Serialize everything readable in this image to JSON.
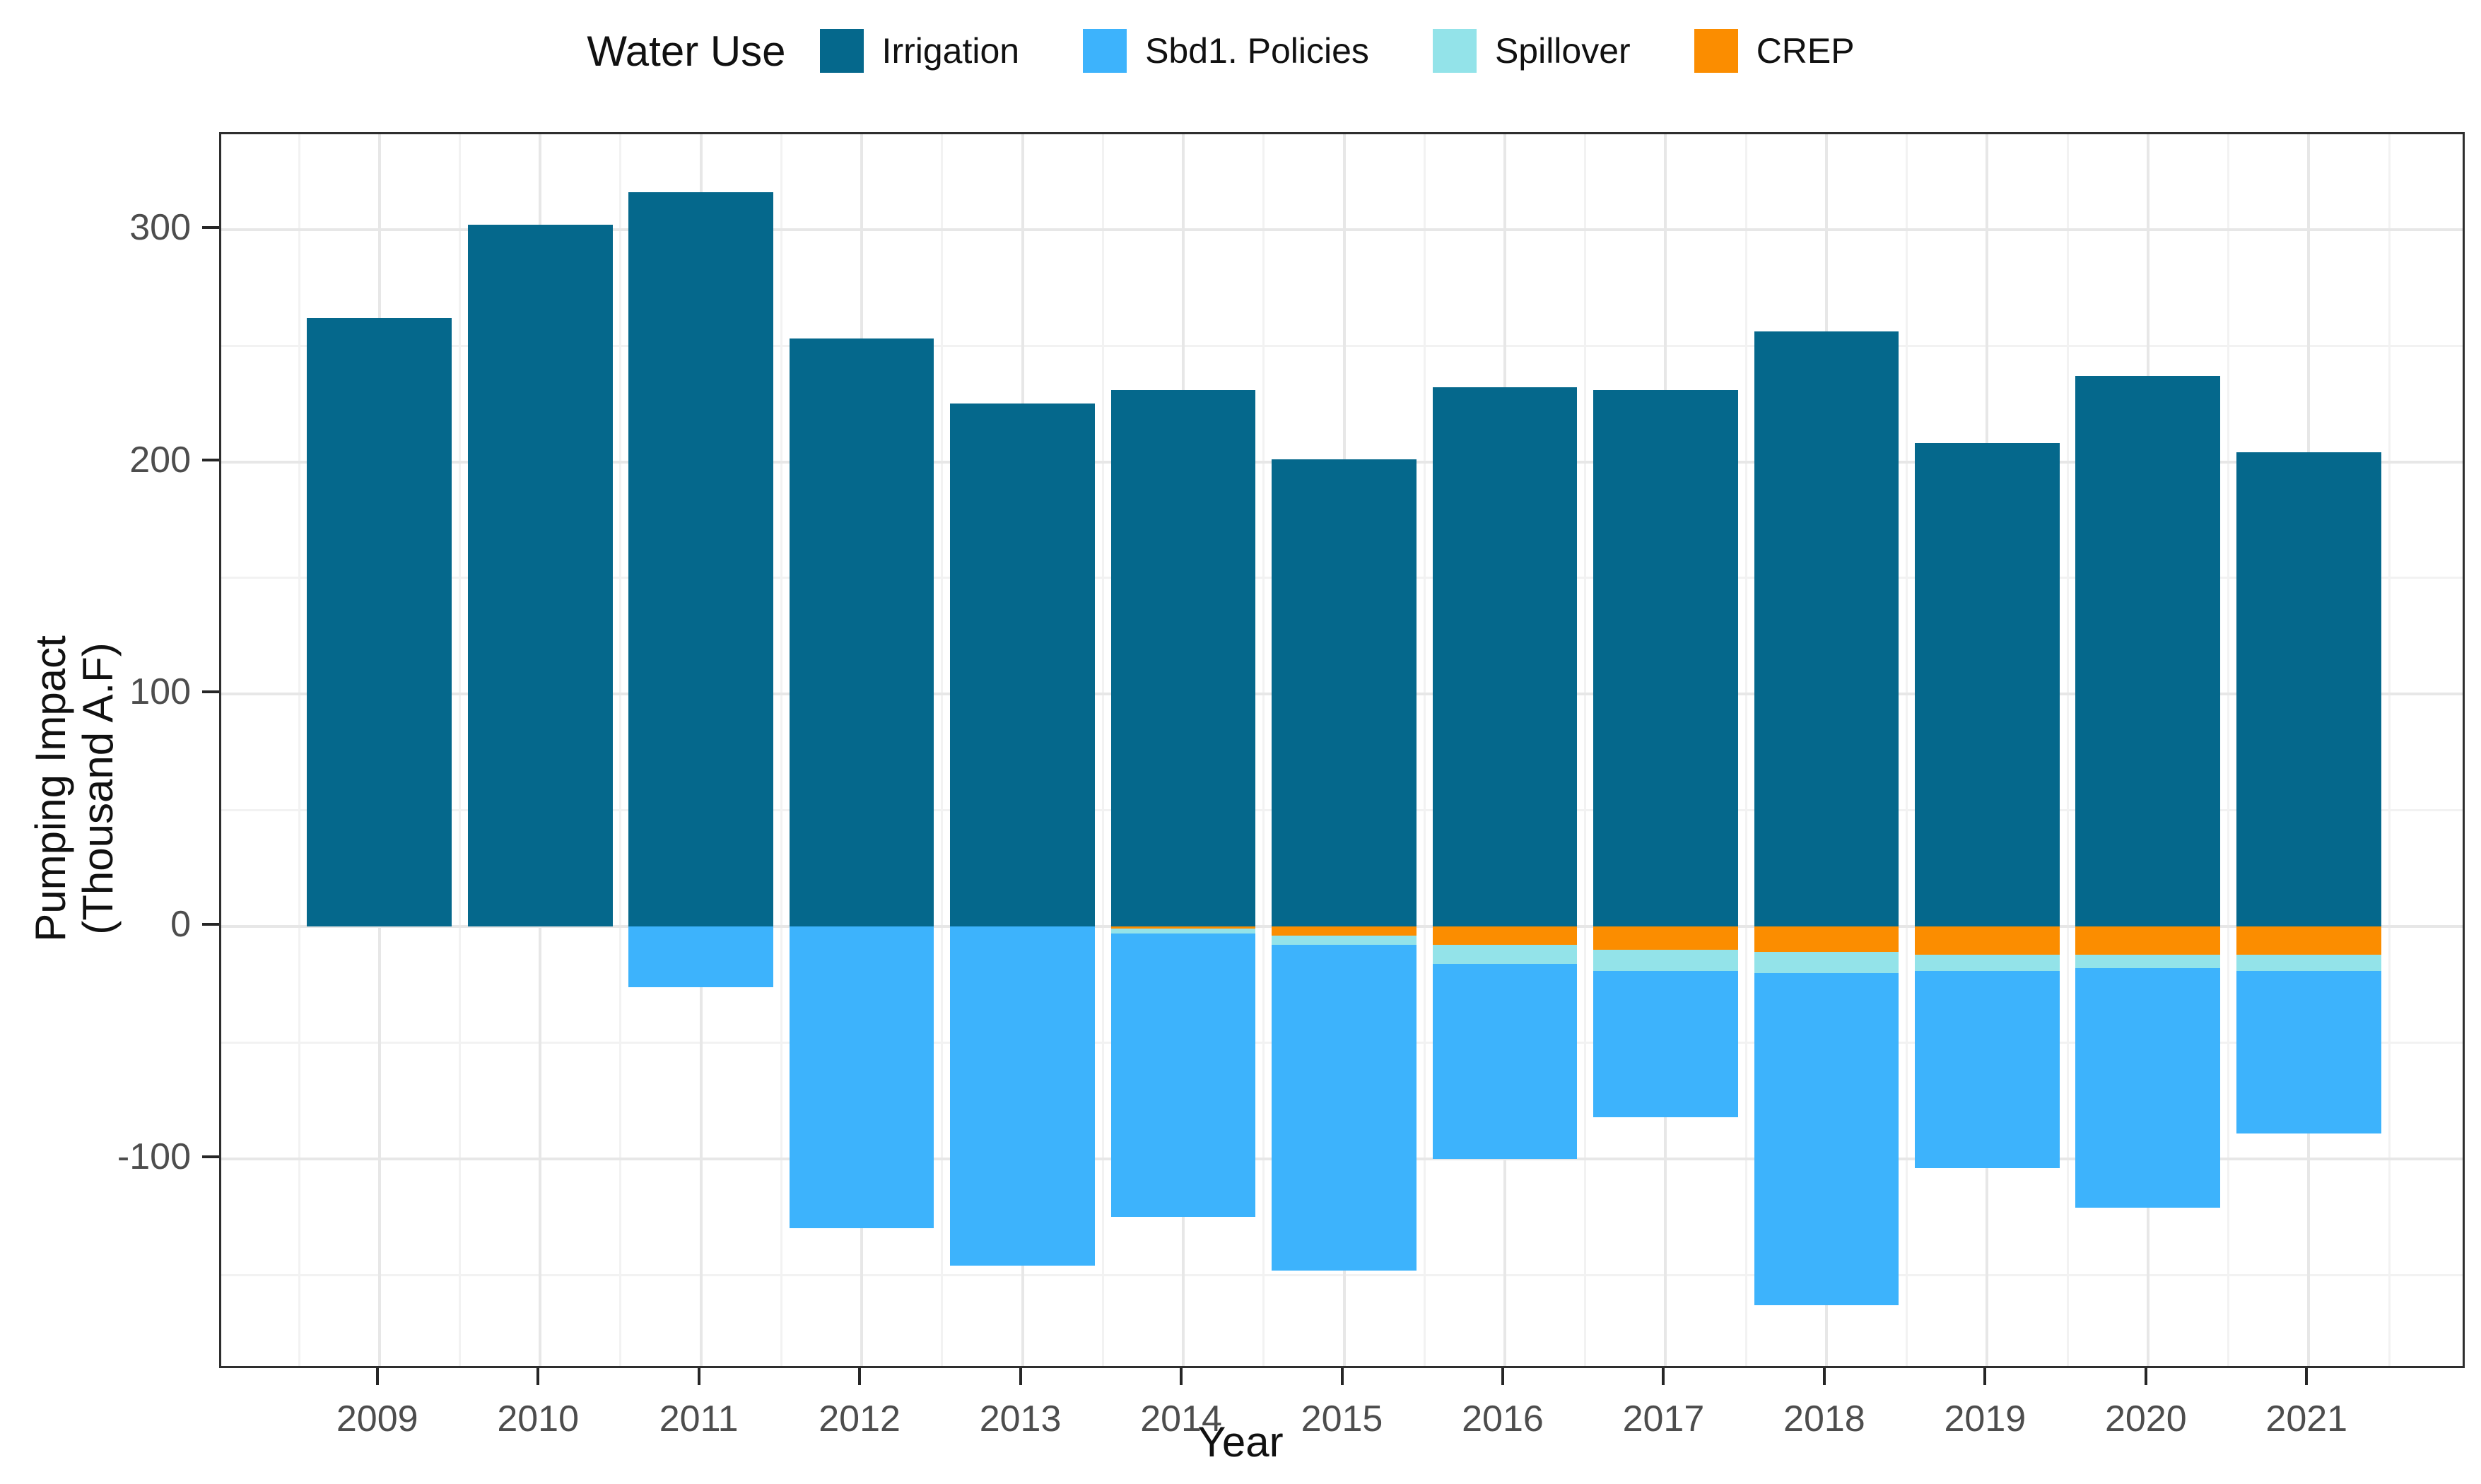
{
  "figure": {
    "kind": "stacked bar chart"
  },
  "legend": {
    "title": "Water Use",
    "items": [
      {
        "label": "Irrigation",
        "color": "#05688c"
      },
      {
        "label": "Sbd1. Policies",
        "color": "#3db3fc"
      },
      {
        "label": "Spillover",
        "color": "#93e3e9"
      },
      {
        "label": "CREP",
        "color": "#fb8d00"
      }
    ]
  },
  "y_axis": {
    "title": "Pumping Impact (Thousand A.F)",
    "title_lines": [
      "Pumping Impact",
      "(Thousand A.F)"
    ],
    "major_ticks": [
      300,
      200,
      100,
      0,
      -100
    ],
    "minor_ticks": [
      250,
      150,
      50,
      -50,
      -150
    ],
    "domain": [
      -191,
      341
    ]
  },
  "x_axis": {
    "title": "Year",
    "categories": [
      "2009",
      "2010",
      "2011",
      "2012",
      "2013",
      "2014",
      "2015",
      "2016",
      "2017",
      "2018",
      "2019",
      "2020",
      "2021"
    ]
  },
  "chart_data": {
    "type": "bar",
    "stacked": true,
    "title": "",
    "xlabel": "Year",
    "ylabel": "Pumping Impact (Thousand A.F)",
    "ylim": [
      -191,
      341
    ],
    "grid": true,
    "legend_position": "top",
    "categories": [
      "2009",
      "2010",
      "2011",
      "2012",
      "2013",
      "2014",
      "2015",
      "2016",
      "2017",
      "2018",
      "2019",
      "2020",
      "2021"
    ],
    "series": [
      {
        "name": "Irrigation",
        "color": "#05688c",
        "values": [
          262,
          302,
          316,
          253,
          225,
          231,
          201,
          232,
          231,
          256,
          208,
          237,
          204
        ]
      },
      {
        "name": "Sbd1. Policies",
        "color": "#3db3fc",
        "values": [
          0,
          0,
          -26,
          -130,
          -146,
          -122,
          -140,
          -84,
          -63,
          -143,
          -85,
          -103,
          -70
        ]
      },
      {
        "name": "Spillover",
        "color": "#93e3e9",
        "values": [
          0,
          0,
          0,
          0,
          0,
          -2,
          -4,
          -8,
          -9,
          -9,
          -7,
          -6,
          -7
        ]
      },
      {
        "name": "CREP",
        "color": "#fb8d00",
        "values": [
          0,
          0,
          0,
          0,
          0,
          -1,
          -4,
          -8,
          -10,
          -11,
          -12,
          -12,
          -12
        ]
      }
    ],
    "negative_stack_order_from_zero": [
      "CREP",
      "Spillover",
      "Sbd1. Policies"
    ]
  }
}
